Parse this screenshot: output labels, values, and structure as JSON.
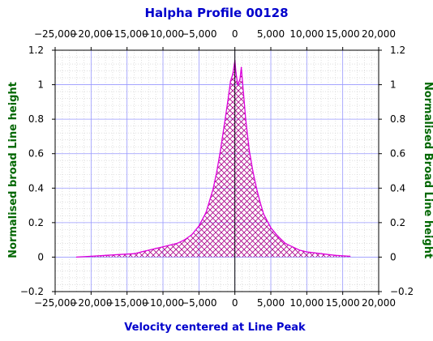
{
  "chart_data": {
    "type": "area",
    "title": "Halpha Profile 00128",
    "xlabel": "Velocity centered at Line Peak",
    "ylabel_left": "Normalised broad Line height",
    "ylabel_right": "Normalised Broad Line height",
    "xlim": [
      -25000,
      20000
    ],
    "ylim": [
      -0.2,
      1.2
    ],
    "x_ticks": [
      -25000,
      -20000,
      -15000,
      -10000,
      -5000,
      0,
      5000,
      10000,
      15000,
      20000
    ],
    "x_tick_labels": [
      "−25,000",
      "−20,000",
      "−15,000",
      "−10,000",
      "−5,000",
      "0",
      "5,000",
      "10,000",
      "15,000",
      "20,000"
    ],
    "y_ticks": [
      -0.2,
      0,
      0.2,
      0.4,
      0.6,
      0.8,
      1,
      1.2
    ],
    "y_tick_labels": [
      "−0.2",
      "0",
      "0.2",
      "0.4",
      "0.6",
      "0.8",
      "1",
      "1.2"
    ],
    "grid": true,
    "colors": {
      "line": "#dd00dd",
      "fill_hatch": "#aa0088",
      "grid_major": "#9999ff",
      "grid_minor": "#cccccc",
      "title": "#0000cc",
      "xlabel": "#0000cc",
      "ylabel": "#006600",
      "center_line": "#000000"
    },
    "series": [
      {
        "x": [
          -22000,
          -20000,
          -18000,
          -16000,
          -14000,
          -13000,
          -12000,
          -11000,
          -10000,
          -9000,
          -8000,
          -7000,
          -6000,
          -5000,
          -4000,
          -3000,
          -2500,
          -2000,
          -1500,
          -1000,
          -600,
          -300,
          0,
          150,
          400,
          700,
          900,
          1200,
          1500,
          2000,
          2500,
          3000,
          3500,
          4000,
          5000,
          6000,
          7000,
          8000,
          9000,
          10000,
          12000,
          14000,
          16000
        ],
        "y": [
          0.0,
          0.005,
          0.01,
          0.015,
          0.02,
          0.03,
          0.04,
          0.05,
          0.06,
          0.07,
          0.08,
          0.1,
          0.13,
          0.18,
          0.26,
          0.4,
          0.5,
          0.62,
          0.76,
          0.9,
          1.02,
          1.06,
          1.14,
          1.07,
          1.0,
          1.03,
          1.1,
          0.95,
          0.8,
          0.62,
          0.5,
          0.4,
          0.32,
          0.25,
          0.17,
          0.12,
          0.08,
          0.06,
          0.04,
          0.03,
          0.02,
          0.01,
          0.005
        ]
      }
    ]
  }
}
